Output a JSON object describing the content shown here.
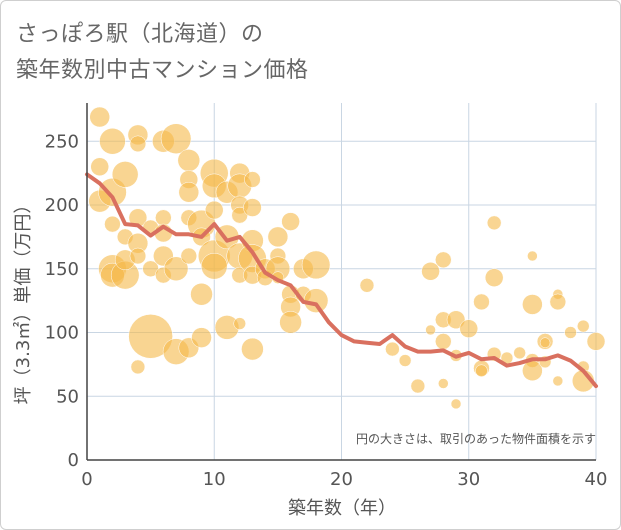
{
  "chart_data": {
    "type": "scatter",
    "title_line1": "さっぽろ駅（北海道）の",
    "title_line2": "築年数別中古マンション価格",
    "xlabel": "築年数（年）",
    "ylabel": "坪（3.3㎡）単価（万円）",
    "xlim": [
      0,
      40
    ],
    "ylim": [
      0,
      280
    ],
    "xticks": [
      "0",
      "10",
      "20",
      "30",
      "40"
    ],
    "yticks": [
      "0",
      "50",
      "100",
      "150",
      "200",
      "250"
    ],
    "xtick_values": [
      0,
      10,
      20,
      30,
      40
    ],
    "ytick_values": [
      0,
      50,
      100,
      150,
      200,
      250
    ],
    "grid": true,
    "note": "円の大きさは、取引のあった物件面積を示す",
    "colors": {
      "bubble": "#f5b94a",
      "line": "#d9705f",
      "grid": "#c9d6e3",
      "axis": "#444444"
    },
    "series": [
      {
        "type": "bubble",
        "points": [
          [
            1,
            269,
            10
          ],
          [
            1,
            230,
            9
          ],
          [
            1,
            203,
            11
          ],
          [
            2,
            250,
            13
          ],
          [
            2,
            210,
            14
          ],
          [
            2,
            185,
            8
          ],
          [
            2,
            150,
            14
          ],
          [
            2,
            145,
            12
          ],
          [
            3,
            224,
            13
          ],
          [
            3,
            175,
            8
          ],
          [
            3,
            145,
            14
          ],
          [
            3,
            157,
            10
          ],
          [
            4,
            255,
            10
          ],
          [
            4,
            248,
            8
          ],
          [
            4,
            190,
            9
          ],
          [
            4,
            170,
            10
          ],
          [
            4,
            160,
            8
          ],
          [
            4,
            73,
            7
          ],
          [
            5,
            182,
            8
          ],
          [
            5,
            150,
            8
          ],
          [
            5,
            97,
            22
          ],
          [
            6,
            250,
            11
          ],
          [
            6,
            190,
            8
          ],
          [
            6,
            178,
            9
          ],
          [
            6,
            160,
            10
          ],
          [
            6,
            145,
            8
          ],
          [
            7,
            252,
            15
          ],
          [
            7,
            150,
            12
          ],
          [
            7,
            85,
            13
          ],
          [
            8,
            235,
            11
          ],
          [
            8,
            220,
            9
          ],
          [
            8,
            210,
            10
          ],
          [
            8,
            190,
            8
          ],
          [
            8,
            160,
            8
          ],
          [
            8,
            88,
            10
          ],
          [
            9,
            185,
            14
          ],
          [
            9,
            175,
            9
          ],
          [
            9,
            130,
            11
          ],
          [
            9,
            96,
            10
          ],
          [
            10,
            225,
            14
          ],
          [
            10,
            215,
            12
          ],
          [
            10,
            160,
            16
          ],
          [
            10,
            152,
            13
          ],
          [
            10,
            196,
            9
          ],
          [
            11,
            210,
            11
          ],
          [
            11,
            175,
            12
          ],
          [
            11,
            104,
            12
          ],
          [
            12,
            225,
            10
          ],
          [
            12,
            215,
            12
          ],
          [
            12,
            200,
            9
          ],
          [
            12,
            192,
            8
          ],
          [
            12,
            160,
            13
          ],
          [
            12,
            145,
            8
          ],
          [
            12,
            107,
            6
          ],
          [
            13,
            220,
            8
          ],
          [
            13,
            198,
            9
          ],
          [
            13,
            172,
            11
          ],
          [
            13,
            158,
            14
          ],
          [
            13,
            145,
            9
          ],
          [
            13,
            87,
            11
          ],
          [
            14,
            150,
            10
          ],
          [
            14,
            143,
            8
          ],
          [
            15,
            175,
            10
          ],
          [
            15,
            160,
            8
          ],
          [
            15,
            150,
            12
          ],
          [
            15,
            143,
            6
          ],
          [
            16,
            187,
            9
          ],
          [
            16,
            130,
            9
          ],
          [
            16,
            120,
            10
          ],
          [
            16,
            108,
            11
          ],
          [
            17,
            150,
            10
          ],
          [
            17,
            130,
            8
          ],
          [
            18,
            125,
            12
          ],
          [
            18,
            153,
            14
          ],
          [
            22,
            137,
            7
          ],
          [
            24,
            87,
            7
          ],
          [
            25,
            78,
            6
          ],
          [
            26,
            58,
            7
          ],
          [
            27,
            148,
            9
          ],
          [
            27,
            102,
            5
          ],
          [
            28,
            157,
            8
          ],
          [
            28,
            110,
            8
          ],
          [
            28,
            93,
            8
          ],
          [
            28,
            60,
            5
          ],
          [
            29,
            110,
            9
          ],
          [
            29,
            82,
            6
          ],
          [
            29,
            44,
            5
          ],
          [
            30,
            103,
            9
          ],
          [
            31,
            124,
            8
          ],
          [
            31,
            72,
            8
          ],
          [
            31,
            70,
            6
          ],
          [
            32,
            186,
            7
          ],
          [
            32,
            143,
            9
          ],
          [
            32,
            83,
            7
          ],
          [
            33,
            80,
            6
          ],
          [
            34,
            84,
            6
          ],
          [
            35,
            160,
            5
          ],
          [
            35,
            122,
            10
          ],
          [
            35,
            78,
            7
          ],
          [
            35,
            70,
            10
          ],
          [
            36,
            93,
            8
          ],
          [
            36,
            92,
            5
          ],
          [
            36,
            77,
            6
          ],
          [
            37,
            130,
            5
          ],
          [
            37,
            124,
            8
          ],
          [
            37,
            62,
            5
          ],
          [
            38,
            100,
            6
          ],
          [
            39,
            105,
            6
          ],
          [
            39,
            73,
            6
          ],
          [
            39,
            62,
            11
          ],
          [
            40,
            93,
            9
          ]
        ]
      },
      {
        "type": "line",
        "x": [
          0,
          1,
          2,
          3,
          4,
          5,
          6,
          7,
          8,
          9,
          10,
          11,
          12,
          13,
          14,
          15,
          16,
          17,
          18,
          19,
          20,
          21,
          22,
          23,
          24,
          25,
          26,
          27,
          28,
          29,
          30,
          31,
          32,
          33,
          34,
          35,
          36,
          37,
          38,
          39,
          40
        ],
        "y": [
          224,
          217,
          206,
          185,
          184,
          176,
          183,
          177,
          177,
          175,
          185,
          172,
          175,
          163,
          147,
          141,
          137,
          124,
          122,
          108,
          98,
          93,
          92,
          91,
          98,
          89,
          85,
          85,
          86,
          81,
          84,
          79,
          80,
          74,
          76,
          79,
          79,
          82,
          78,
          70,
          58
        ]
      }
    ]
  }
}
